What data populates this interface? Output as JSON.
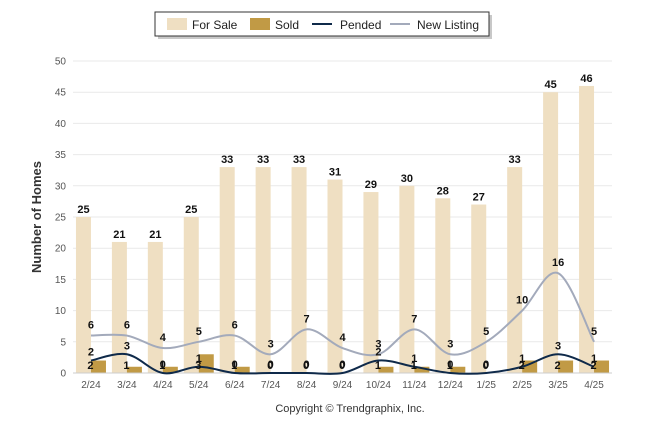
{
  "chart_data": {
    "type": "bar",
    "categories": [
      "2/24",
      "3/24",
      "4/24",
      "5/24",
      "6/24",
      "7/24",
      "8/24",
      "9/24",
      "10/24",
      "11/24",
      "12/24",
      "1/25",
      "2/25",
      "3/25",
      "4/25"
    ],
    "series": [
      {
        "name": "For Sale",
        "kind": "bar",
        "color": "#efdfc2",
        "values": [
          25,
          21,
          21,
          25,
          33,
          33,
          33,
          31,
          29,
          30,
          28,
          27,
          33,
          45,
          46
        ]
      },
      {
        "name": "Sold",
        "kind": "bar",
        "color": "#c19a45",
        "values": [
          2,
          1,
          1,
          3,
          1,
          0,
          0,
          0,
          1,
          1,
          1,
          0,
          2,
          2,
          2
        ]
      },
      {
        "name": "Pended",
        "kind": "line",
        "color": "#0f2a4a",
        "values": [
          2,
          3,
          0,
          1,
          0,
          0,
          0,
          0,
          2,
          1,
          0,
          0,
          1,
          3,
          1
        ]
      },
      {
        "name": "New Listing",
        "kind": "line",
        "color": "#a3aabb",
        "values": [
          6,
          6,
          4,
          5,
          6,
          3,
          7,
          4,
          3,
          7,
          3,
          5,
          10,
          16,
          5
        ]
      }
    ],
    "title": "",
    "xlabel": "",
    "ylabel": "Number of Homes",
    "ylim": [
      0,
      50
    ],
    "yticks": [
      0,
      5,
      10,
      15,
      20,
      25,
      30,
      35,
      40,
      45,
      50
    ],
    "grid": true,
    "legend_position": "top-center"
  },
  "copyright": "Copyright © Trendgraphix, Inc."
}
